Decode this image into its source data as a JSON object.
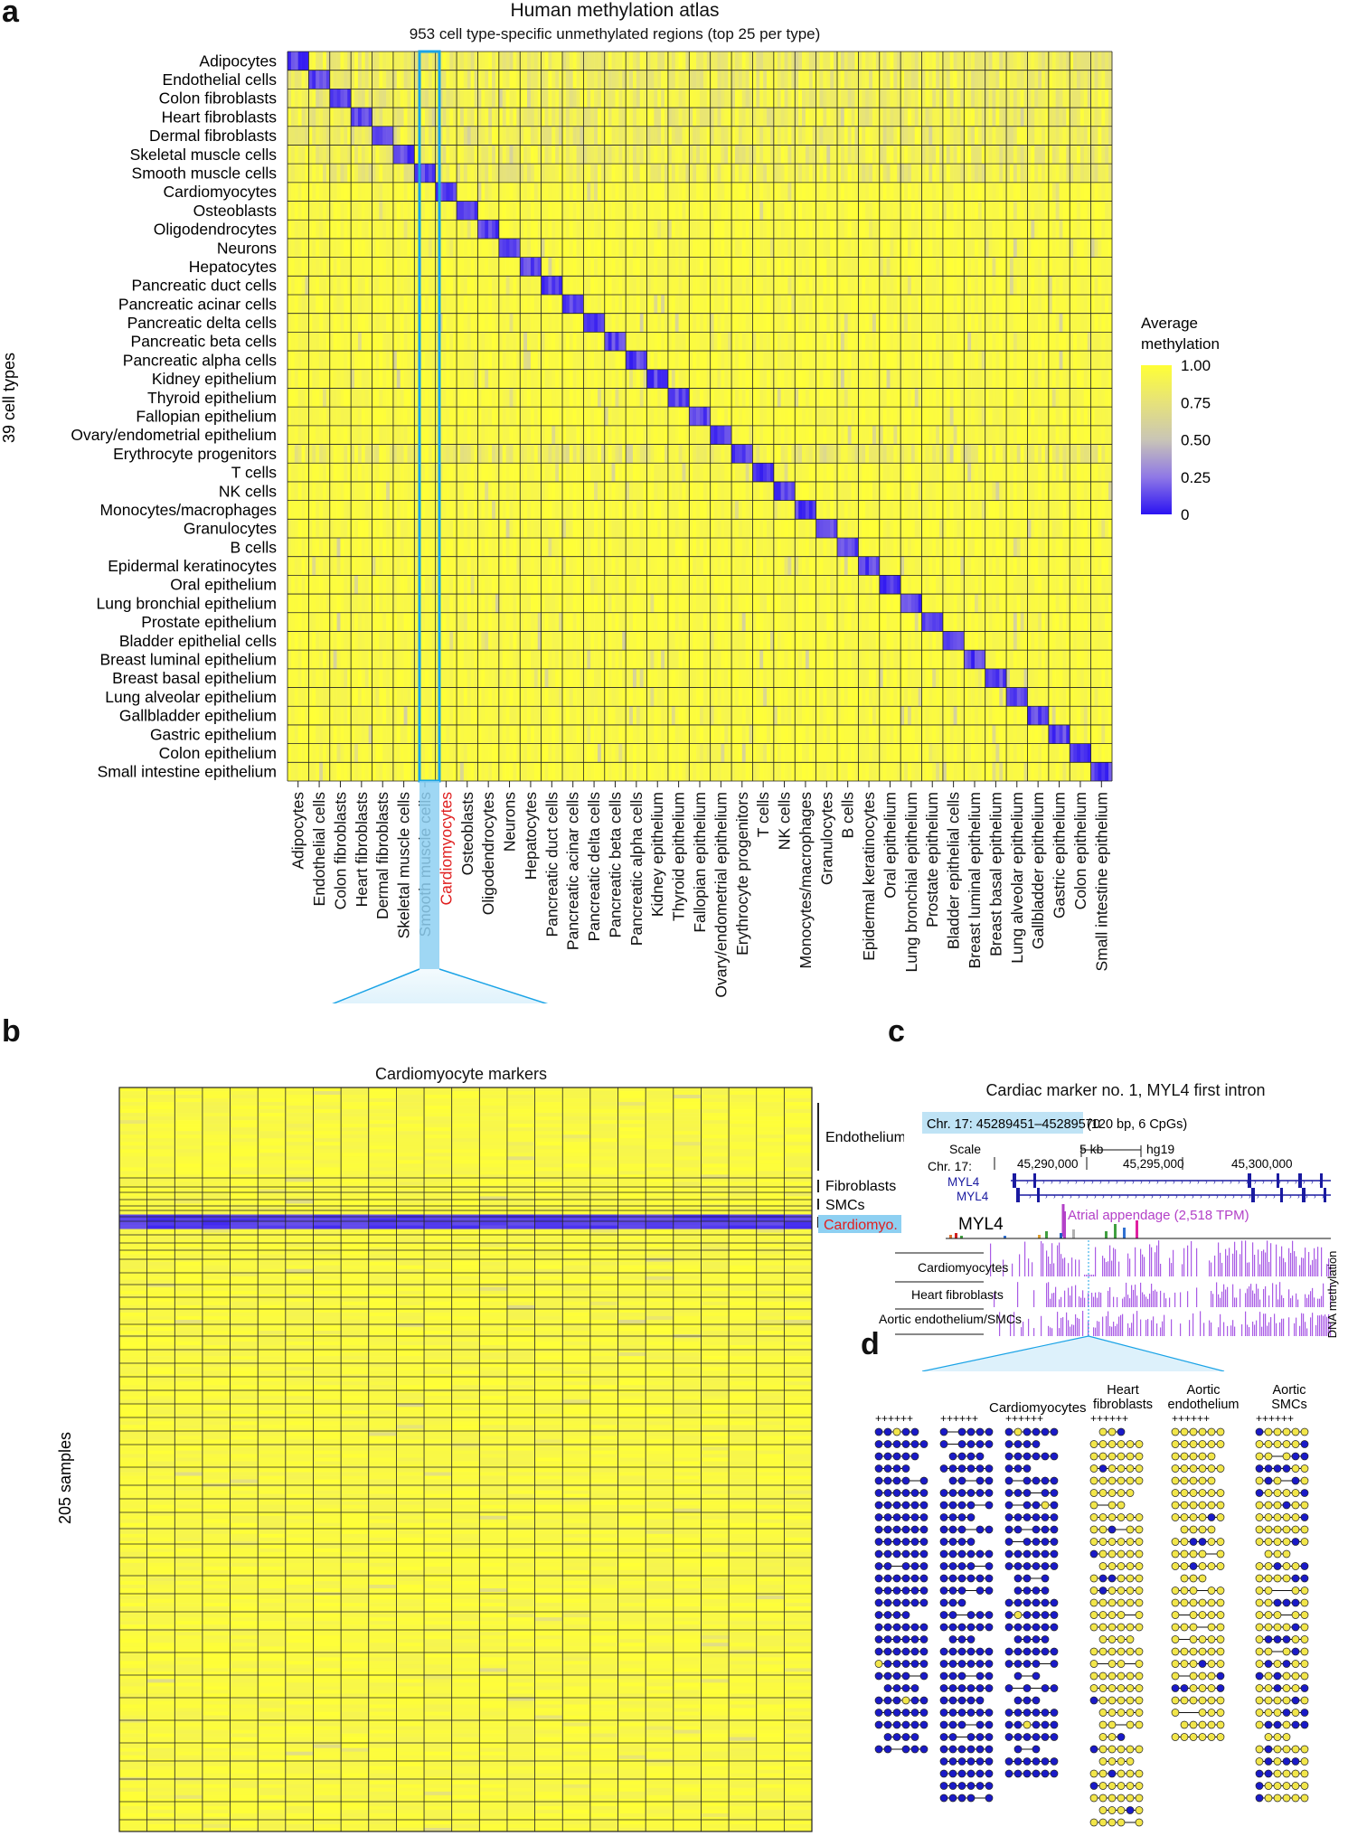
{
  "panels": {
    "a": "a",
    "b": "b",
    "c": "c",
    "d": "d"
  },
  "colors": {
    "high": "#ffff36",
    "mid": "#c8c8a0",
    "low": "#2b13f2",
    "highlight": "#1aa3e6",
    "red_label": "#e02020",
    "magenta": "#b341c8"
  },
  "chart_data": [
    {
      "panel": "a",
      "type": "heatmap",
      "title": "Human methylation atlas",
      "subtitle": "953 cell type-specific unmethylated regions (top 25 per type)",
      "ylabel": "39 cell types",
      "highlighted_column": "Cardiomyocytes",
      "colorbar": {
        "label_line1": "Average",
        "label_line2": "methylation",
        "ticks": [
          "1.00",
          "0.75",
          "0.50",
          "0.25",
          "0"
        ],
        "range": [
          0,
          1
        ]
      },
      "rows": [
        "Adipocytes",
        "Endothelial cells",
        "Colon fibroblasts",
        "Heart fibroblasts",
        "Dermal fibroblasts",
        "Skeletal muscle cells",
        "Smooth muscle cells",
        "Cardiomyocytes",
        "Osteoblasts",
        "Oligodendrocytes",
        "Neurons",
        "Hepatocytes",
        "Pancreatic duct cells",
        "Pancreatic acinar cells",
        "Pancreatic delta cells",
        "Pancreatic beta cells",
        "Pancreatic alpha cells",
        "Kidney epithelium",
        "Thyroid epithelium",
        "Fallopian epithelium",
        "Ovary/endometrial epithelium",
        "Erythrocyte progenitors",
        "T cells",
        "NK cells",
        "Monocytes/macrophages",
        "Granulocytes",
        "B cells",
        "Epidermal keratinocytes",
        "Oral epithelium",
        "Lung bronchial epithelium",
        "Prostate epithelium",
        "Bladder epithelial cells",
        "Breast luminal epithelium",
        "Breast basal epithelium",
        "Lung alveolar epithelium",
        "Gallbladder epithelium",
        "Gastric epithelium",
        "Colon epithelium",
        "Small intestine epithelium"
      ],
      "columns": [
        "Adipocytes",
        "Endothelial cells",
        "Colon fibroblasts",
        "Heart fibroblasts",
        "Dermal fibroblasts",
        "Skeletal muscle cells",
        "Smooth muscle cells",
        "Cardiomyocytes",
        "Osteoblasts",
        "Oligodendrocytes",
        "Neurons",
        "Hepatocytes",
        "Pancreatic duct cells",
        "Pancreatic acinar cells",
        "Pancreatic delta cells",
        "Pancreatic beta cells",
        "Pancreatic alpha cells",
        "Kidney epithelium",
        "Thyroid epithelium",
        "Fallopian epithelium",
        "Ovary/endometrial epithelium",
        "Erythrocyte progenitors",
        "T cells",
        "NK cells",
        "Monocytes/macrophages",
        "Granulocytes",
        "B cells",
        "Epidermal keratinocytes",
        "Oral epithelium",
        "Lung bronchial epithelium",
        "Prostate epithelium",
        "Bladder epithelial cells",
        "Breast luminal epithelium",
        "Breast basal epithelium",
        "Lung alveolar epithelium",
        "Gallbladder epithelium",
        "Gastric epithelium",
        "Colon epithelium",
        "Small intestine epithelium"
      ],
      "pattern": "diagonal blocks ~0 (unmethylated), off-diagonal ~1.0; rows 1-7 and Erythrocyte progenitors partially intermediate (~0.6-0.8)"
    },
    {
      "panel": "b",
      "type": "heatmap",
      "title": "Cardiomyocyte markers",
      "ylabel": "205 samples",
      "groups": [
        "Endothelium",
        "Fibroblasts",
        "SMCs",
        "Cardiomyo."
      ],
      "columns_count": 25,
      "pattern": "Cardiomyo. rows ~0 (unmethylated, blue); all other sample rows ~1.0 (yellow)"
    },
    {
      "panel": "c",
      "type": "genome-browser",
      "title": "Cardiac marker no. 1, MYL4 first intron",
      "region": "Chr. 17: 45289451–45289570",
      "region_note": "(120 bp, 6 CpGs)",
      "scale_label": "Scale",
      "chr_label": "Chr. 17:",
      "scale_bar": "5 kb",
      "assembly": "hg19",
      "coords": [
        "45,290,000",
        "45,295,000",
        "45,300,000"
      ],
      "gene": "MYL4",
      "expression_label": "MYL4",
      "expression_note": "Atrial appendage (2,518 TPM)",
      "tracks": [
        "Cardiomyocytes",
        "Heart fibroblasts",
        "Aortic endothelium/SMCs"
      ],
      "track_axis": "DNA methylation"
    },
    {
      "panel": "d",
      "type": "lollipop-reads",
      "cpg_header": "++++++",
      "groups": [
        {
          "name": "Cardiomyocytes",
          "methylated_fraction": 0.97
        },
        {
          "name_line1": "Heart",
          "name_line2": "fibroblasts",
          "methylated_fraction": 0.08
        },
        {
          "name_line1": "Aortic",
          "name_line2": "endothelium",
          "methylated_fraction": 0.05
        },
        {
          "name_line1": "Aortic",
          "name_line2": "SMCs",
          "methylated_fraction": 0.25
        }
      ]
    }
  ]
}
